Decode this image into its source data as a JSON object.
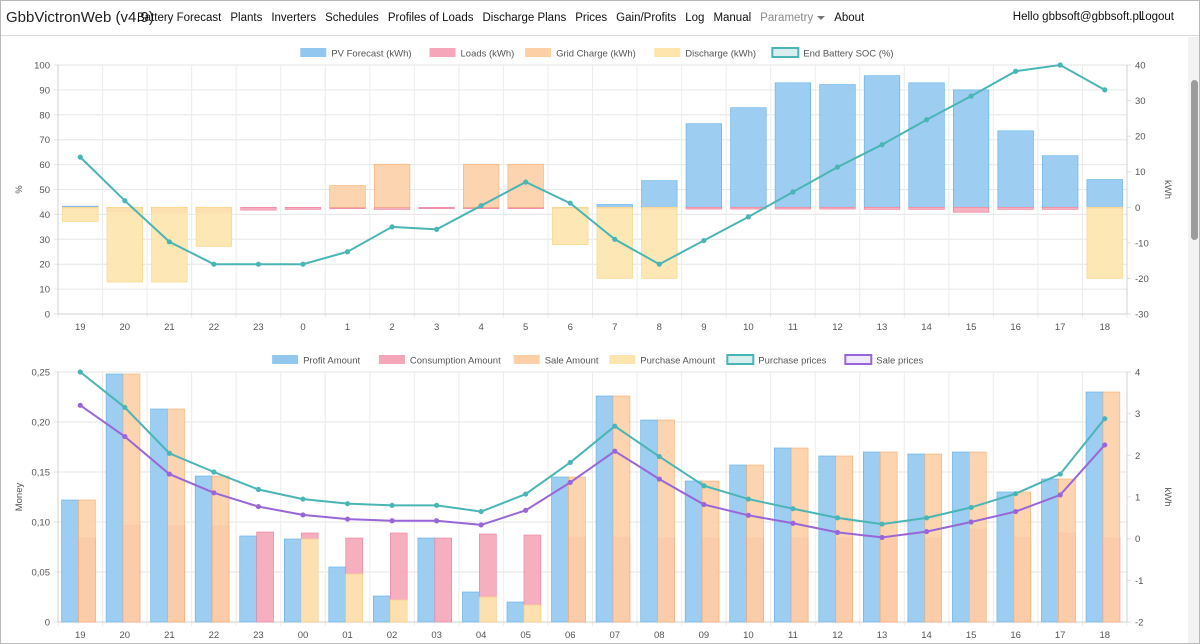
{
  "navbar": {
    "brand": "GbbVictronWeb (v4.9)",
    "items": [
      "Battery Forecast",
      "Plants",
      "Inverters",
      "Schedules",
      "Profiles of Loads",
      "Discharge Plans",
      "Prices",
      "Gain/Profits",
      "Log",
      "Manual"
    ],
    "parametry": "Parametry",
    "about": "About",
    "user": "Hello gbbsoft@gbbsoft.pll",
    "logout": "Logout"
  },
  "colors": {
    "blue": "#92c8ef",
    "pink": "#f5a6b8",
    "orange": "#fccfa6",
    "yellow": "#fde5ad",
    "teal": "#4ab5b5",
    "purple": "#9966d8"
  },
  "chart_data": [
    {
      "type": "bar",
      "categories": [
        "19",
        "20",
        "21",
        "22",
        "23",
        "0",
        "1",
        "2",
        "3",
        "4",
        "5",
        "6",
        "7",
        "8",
        "9",
        "10",
        "11",
        "12",
        "13",
        "14",
        "15",
        "16",
        "17",
        "18"
      ],
      "ylabel_left": "%",
      "ylabel_right": "kWh",
      "ylim_left": [
        0,
        100
      ],
      "ylim_right": [
        -30,
        40
      ],
      "y_ticks_left": [
        "0",
        "10",
        "20",
        "30",
        "40",
        "50",
        "60",
        "70",
        "80",
        "90",
        "100"
      ],
      "y_ticks_right": [
        "-30",
        "-20",
        "-10",
        "0",
        "10",
        "20",
        "30",
        "40"
      ],
      "legend": [
        "PV Forecast (kWh)",
        "Loads (kWh)",
        "Grid Charge (kWh)",
        "Discharge (kWh)",
        "End Battery SOC (%)"
      ],
      "series": [
        {
          "name": "PV Forecast (kWh)",
          "axis": "right",
          "color": "blue",
          "values": [
            0.3,
            0,
            0,
            0,
            0,
            0,
            0,
            0,
            0,
            0,
            0,
            0,
            0.8,
            7.5,
            23.5,
            28,
            35,
            34.5,
            37,
            35,
            33,
            21.5,
            14.5,
            7.8
          ]
        },
        {
          "name": "Loads (kWh)",
          "axis": "right",
          "color": "pink",
          "values": [
            -0.3,
            -1.2,
            -1.4,
            -1.4,
            -0.8,
            -0.6,
            -0.4,
            -0.6,
            -0.4,
            -0.4,
            -0.4,
            -0.4,
            -0.4,
            -0.6,
            -0.5,
            -0.5,
            -0.5,
            -0.5,
            -0.6,
            -0.6,
            -1.4,
            -0.6,
            -0.6,
            -0.4
          ]
        },
        {
          "name": "Grid Charge (kWh)",
          "axis": "right",
          "color": "orange",
          "values": [
            0,
            0,
            0,
            0,
            0,
            0,
            6.1,
            12.1,
            0,
            12.1,
            12.1,
            0,
            0,
            0,
            0,
            0,
            0,
            0,
            0,
            0,
            0,
            0,
            0,
            0
          ]
        },
        {
          "name": "Discharge (kWh)",
          "axis": "right",
          "color": "yellow",
          "values": [
            -4,
            -21,
            -21,
            -11,
            0,
            0,
            0,
            0,
            0,
            0,
            0,
            -10.5,
            -20,
            -20,
            0,
            0,
            0,
            0,
            0,
            0,
            0,
            0,
            0,
            -20
          ]
        },
        {
          "name": "End Battery SOC (%)",
          "axis": "left",
          "type": "line",
          "color": "teal",
          "values": [
            63,
            45.5,
            29,
            20,
            20,
            20,
            25,
            35,
            34,
            43.5,
            53,
            44.5,
            30,
            20,
            29.5,
            39,
            49,
            59,
            68,
            78,
            87.5,
            97.5,
            100,
            90
          ]
        }
      ]
    },
    {
      "type": "bar",
      "categories": [
        "19",
        "20",
        "21",
        "22",
        "23",
        "00",
        "01",
        "02",
        "03",
        "04",
        "05",
        "06",
        "07",
        "08",
        "09",
        "10",
        "11",
        "12",
        "13",
        "14",
        "15",
        "16",
        "17",
        "18"
      ],
      "ylabel_left": "Money",
      "ylabel_right": "kWh",
      "ylim_left": [
        0,
        0.25
      ],
      "ylim_right": [
        -2,
        4
      ],
      "y_ticks_left": [
        "0",
        "0,05",
        "0,10",
        "0,15",
        "0,20",
        "0,25"
      ],
      "y_ticks_right": [
        "-2",
        "-1",
        "0",
        "1",
        "2",
        "3",
        "4"
      ],
      "legend": [
        "Profit Amount",
        "Consumption Amount",
        "Sale Amount",
        "Purchase Amount",
        "Purchase prices",
        "Sale prices"
      ],
      "series": [
        {
          "name": "Profit Amount",
          "axis": "left",
          "color": "blue",
          "values": [
            0.122,
            0.248,
            0.213,
            0.146,
            0.086,
            0.083,
            0.055,
            0.026,
            0.084,
            0.03,
            0.02,
            0.145,
            0.226,
            0.202,
            0.141,
            0.157,
            0.174,
            0.166,
            0.17,
            0.168,
            0.17,
            0.13,
            0.143,
            0.23
          ]
        },
        {
          "name": "Consumption Amount",
          "axis": "left",
          "color": "pink",
          "values": [
            0.084,
            0.097,
            0.096,
            0.096,
            0.09,
            0.089,
            0.084,
            0.089,
            0.084,
            0.088,
            0.087,
            0.085,
            0.085,
            0.084,
            0.084,
            0.084,
            0.084,
            0.084,
            0.084,
            0.084,
            0.093,
            0.085,
            0.089,
            0.084
          ]
        },
        {
          "name": "Sale Amount",
          "axis": "left",
          "color": "orange",
          "values": [
            0.122,
            0.248,
            0.213,
            0.146,
            0,
            0,
            0,
            0,
            0,
            0,
            0,
            0.145,
            0.226,
            0.202,
            0.141,
            0.157,
            0.174,
            0.166,
            0.17,
            0.168,
            0.17,
            0.13,
            0.143,
            0.23
          ]
        },
        {
          "name": "Purchase Amount",
          "axis": "left",
          "color": "yellow",
          "values": [
            0,
            0,
            0,
            0,
            0,
            0.083,
            0.048,
            0.022,
            0,
            0.025,
            0.017,
            0,
            0,
            0,
            0,
            0,
            0,
            0,
            0,
            0,
            0,
            0,
            0,
            0
          ]
        },
        {
          "name": "Purchase prices",
          "axis": "right",
          "type": "line",
          "color": "teal",
          "values": [
            4.0,
            3.15,
            2.05,
            1.6,
            1.18,
            0.95,
            0.84,
            0.8,
            0.8,
            0.65,
            1.07,
            1.83,
            2.7,
            1.97,
            1.27,
            0.95,
            0.72,
            0.5,
            0.35,
            0.5,
            0.75,
            1.08,
            1.55,
            2.88
          ]
        },
        {
          "name": "Sale prices",
          "axis": "right",
          "type": "line",
          "color": "purple",
          "values": [
            3.2,
            2.45,
            1.55,
            1.1,
            0.77,
            0.57,
            0.47,
            0.43,
            0.43,
            0.33,
            0.68,
            1.35,
            2.1,
            1.43,
            0.82,
            0.56,
            0.37,
            0.15,
            0.03,
            0.17,
            0.4,
            0.65,
            1.05,
            2.25
          ]
        }
      ]
    }
  ]
}
